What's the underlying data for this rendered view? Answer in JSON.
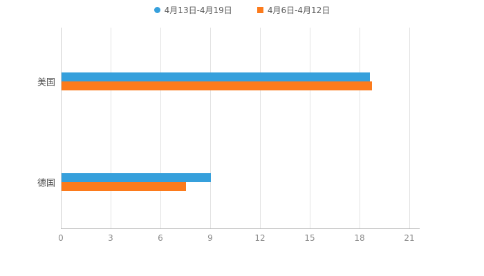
{
  "chart_data": {
    "type": "bar",
    "orientation": "horizontal",
    "title": "",
    "categories": [
      "美国",
      "德国"
    ],
    "series": [
      {
        "name": "4月13日-4月19日",
        "color": "#36a0dc",
        "marker": "circle",
        "values": [
          18.6,
          9.0
        ]
      },
      {
        "name": "4月6日-4月12日",
        "color": "#fc7b1c",
        "marker": "square",
        "values": [
          18.7,
          7.5
        ]
      }
    ],
    "xlim": [
      0,
      21
    ],
    "xticks": [
      0,
      3,
      6,
      9,
      12,
      15,
      18,
      21
    ],
    "grid": true,
    "legend_position": "top",
    "xlabel": "",
    "ylabel": ""
  },
  "layout_colors": {
    "gridline": "#e2e2e2",
    "axis": "#b7b7b7",
    "tick_text": "#8c8c8c",
    "category_text": "#4d4d4d",
    "legend_text": "#595959"
  }
}
